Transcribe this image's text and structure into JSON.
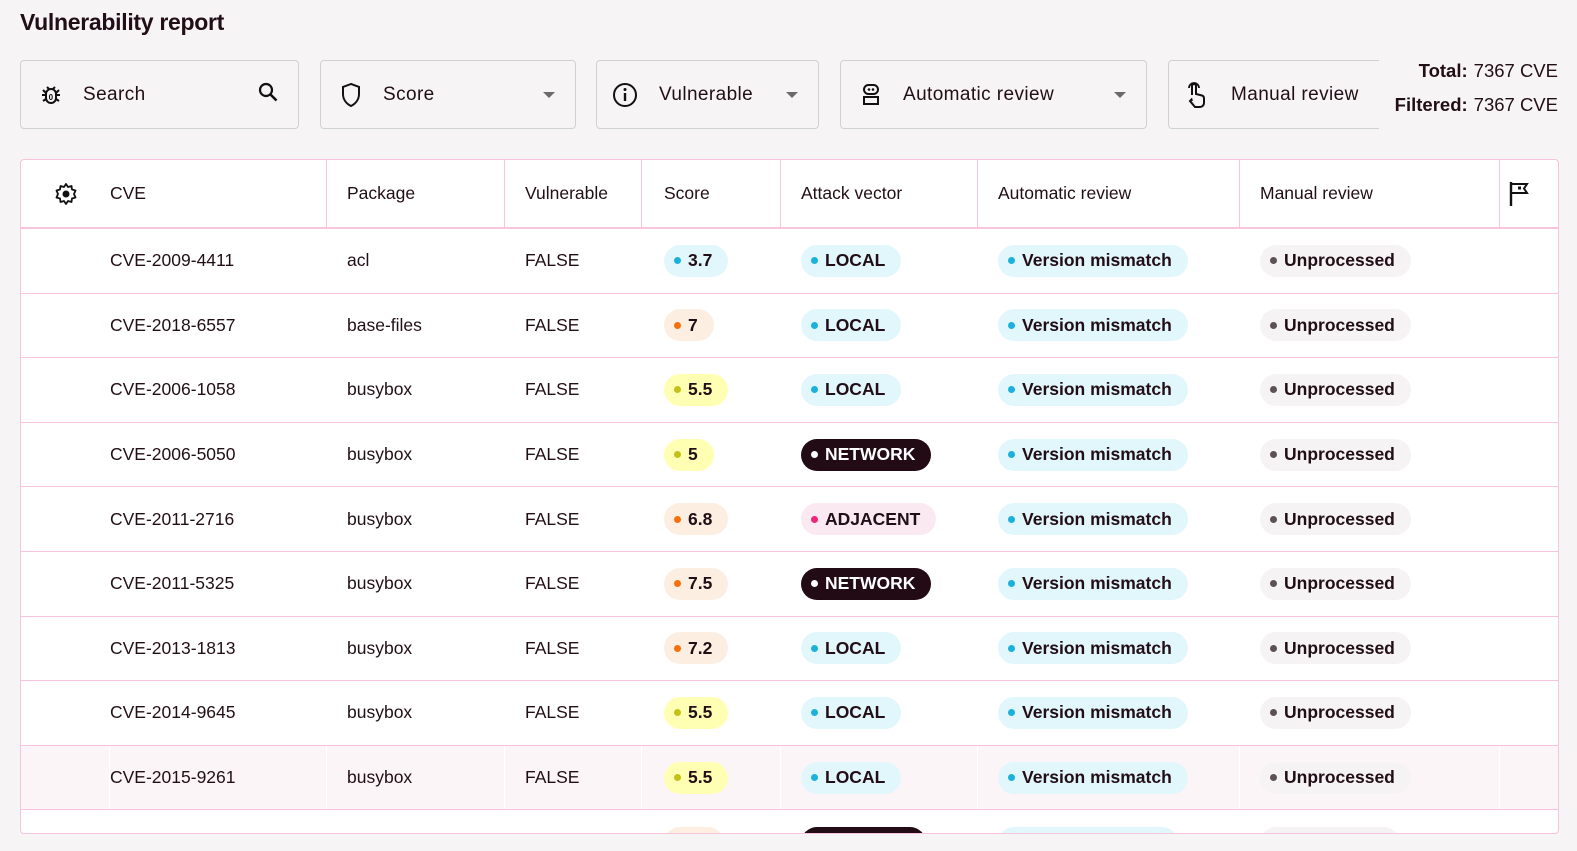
{
  "title": "Vulnerability report",
  "filters": {
    "search": {
      "placeholder": "Search",
      "icon": "bug-icon"
    },
    "score": {
      "label": "Score",
      "icon": "shield-icon"
    },
    "vulnerable": {
      "label": "Vulnerable",
      "icon": "info-icon"
    },
    "automatic_review": {
      "label": "Automatic review",
      "icon": "robot-icon"
    },
    "manual_review": {
      "label": "Manual review",
      "icon": "touch-icon"
    }
  },
  "totals": {
    "total_label": "Total:",
    "total_value": "7367 CVE",
    "filtered_label": "Filtered:",
    "filtered_value": "7367 CVE"
  },
  "table": {
    "columns": [
      "CVE",
      "Package",
      "Vulnerable",
      "Score",
      "Attack vector",
      "Automatic review",
      "Manual review"
    ],
    "rows": [
      {
        "cve": "CVE-2009-4411",
        "package": "acl",
        "vulnerable": "FALSE",
        "score": "3.7",
        "score_level": "low",
        "attack": "LOCAL",
        "auto": "Version mismatch",
        "manual": "Unprocessed"
      },
      {
        "cve": "CVE-2018-6557",
        "package": "base-files",
        "vulnerable": "FALSE",
        "score": "7",
        "score_level": "high",
        "attack": "LOCAL",
        "auto": "Version mismatch",
        "manual": "Unprocessed"
      },
      {
        "cve": "CVE-2006-1058",
        "package": "busybox",
        "vulnerable": "FALSE",
        "score": "5.5",
        "score_level": "medium",
        "attack": "LOCAL",
        "auto": "Version mismatch",
        "manual": "Unprocessed"
      },
      {
        "cve": "CVE-2006-5050",
        "package": "busybox",
        "vulnerable": "FALSE",
        "score": "5",
        "score_level": "medium",
        "attack": "NETWORK",
        "auto": "Version mismatch",
        "manual": "Unprocessed"
      },
      {
        "cve": "CVE-2011-2716",
        "package": "busybox",
        "vulnerable": "FALSE",
        "score": "6.8",
        "score_level": "high",
        "attack": "ADJACENT",
        "auto": "Version mismatch",
        "manual": "Unprocessed"
      },
      {
        "cve": "CVE-2011-5325",
        "package": "busybox",
        "vulnerable": "FALSE",
        "score": "7.5",
        "score_level": "high",
        "attack": "NETWORK",
        "auto": "Version mismatch",
        "manual": "Unprocessed"
      },
      {
        "cve": "CVE-2013-1813",
        "package": "busybox",
        "vulnerable": "FALSE",
        "score": "7.2",
        "score_level": "high",
        "attack": "LOCAL",
        "auto": "Version mismatch",
        "manual": "Unprocessed"
      },
      {
        "cve": "CVE-2014-9645",
        "package": "busybox",
        "vulnerable": "FALSE",
        "score": "5.5",
        "score_level": "medium",
        "attack": "LOCAL",
        "auto": "Version mismatch",
        "manual": "Unprocessed"
      },
      {
        "cve": "CVE-2015-9261",
        "package": "busybox",
        "vulnerable": "FALSE",
        "score": "5.5",
        "score_level": "medium",
        "attack": "LOCAL",
        "auto": "Version mismatch",
        "manual": "Unprocessed",
        "hovered": true
      },
      {
        "cve": "",
        "package": "",
        "vulnerable": "",
        "score": "",
        "score_level": "high",
        "attack": "",
        "attack_style": "NETWORK",
        "auto": "",
        "manual": ""
      }
    ]
  },
  "colors": {
    "score_low": {
      "bg": "#e2f7fc",
      "dot": "#1cb0dc"
    },
    "score_medium": {
      "bg": "#feffb2",
      "dot": "#c3c118"
    },
    "score_high": {
      "bg": "#fdeee2",
      "dot": "#f66f0d"
    },
    "LOCAL": {
      "bg": "#e2f7fc",
      "dot": "#1cb0dc",
      "fg": "#220e16"
    },
    "NETWORK": {
      "bg": "#220b14",
      "dot": "#ffffff",
      "fg": "#ffffff"
    },
    "ADJACENT": {
      "bg": "#fbe9f2",
      "dot": "#f0247a",
      "fg": "#220e16"
    },
    "auto": {
      "bg": "#e2f7fc",
      "dot": "#1cb0dc"
    },
    "manual": {
      "bg": "#f5f3f4",
      "dot": "#5b5157"
    },
    "border": "#f8c3dc"
  }
}
